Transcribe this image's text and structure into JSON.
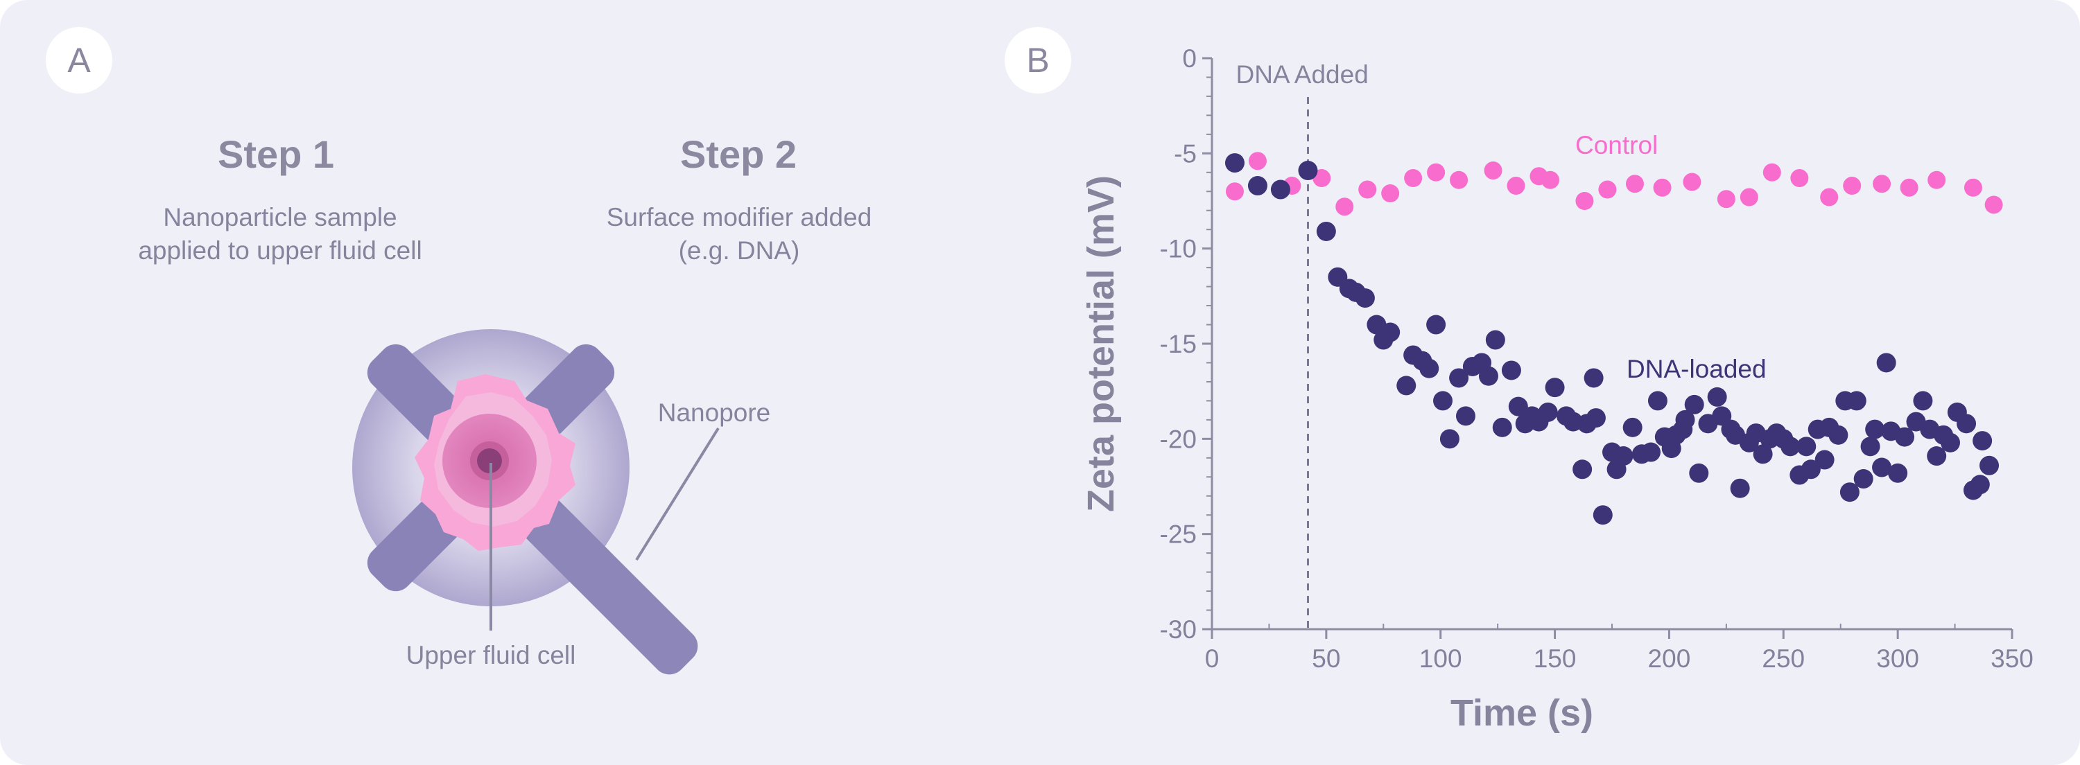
{
  "panel_a": {
    "badge": "A",
    "step1": {
      "title": "Step 1",
      "line1": "Nanoparticle sample",
      "line2": "applied to upper fluid cell"
    },
    "step2": {
      "title": "Step 2",
      "line1": "Surface modifier added",
      "line2": "(e.g. DNA)"
    },
    "labels": {
      "nanopore": "Nanopore",
      "upper_fluid_cell": "Upper fluid cell"
    }
  },
  "panel_b": {
    "badge": "B"
  },
  "colors": {
    "background": "#eff0f7",
    "card": "#ffffff",
    "text": "#83809b",
    "axis": "#8e8ba3",
    "dna_loaded": "#3d3478",
    "control": "#f76ccd",
    "x_bars": "#8d86b8",
    "pink_dark": "#eb7ab8",
    "pink_light": "#f8a7d6"
  },
  "chart_data": {
    "type": "scatter",
    "xlabel": "Time (s)",
    "ylabel": "Zeta potential (mV)",
    "xlim": [
      0,
      350
    ],
    "ylim": [
      -30,
      0
    ],
    "x_ticks": [
      "0",
      "50",
      "100",
      "150",
      "200",
      "250",
      "300",
      "350"
    ],
    "y_ticks": [
      "0",
      "-5",
      "-10",
      "-15",
      "-20",
      "-25",
      "-30"
    ],
    "grid": false,
    "annotations": [
      {
        "text": "DNA Added",
        "x": 42,
        "type": "vertical-dashed-line"
      }
    ],
    "series": [
      {
        "name": "Control",
        "points": [
          [
            10,
            -7.0
          ],
          [
            20,
            -5.4
          ],
          [
            35,
            -6.7
          ],
          [
            48,
            -6.3
          ],
          [
            58,
            -7.8
          ],
          [
            68,
            -6.9
          ],
          [
            78,
            -7.1
          ],
          [
            88,
            -6.3
          ],
          [
            98,
            -6.0
          ],
          [
            108,
            -6.4
          ],
          [
            123,
            -5.9
          ],
          [
            133,
            -6.7
          ],
          [
            143,
            -6.2
          ],
          [
            148,
            -6.4
          ],
          [
            163,
            -7.5
          ],
          [
            173,
            -6.9
          ],
          [
            185,
            -6.6
          ],
          [
            197,
            -6.8
          ],
          [
            210,
            -6.5
          ],
          [
            225,
            -7.4
          ],
          [
            235,
            -7.3
          ],
          [
            245,
            -6.0
          ],
          [
            257,
            -6.3
          ],
          [
            270,
            -7.3
          ],
          [
            280,
            -6.7
          ],
          [
            293,
            -6.6
          ],
          [
            305,
            -6.8
          ],
          [
            317,
            -6.4
          ],
          [
            333,
            -6.8
          ],
          [
            342,
            -7.7
          ]
        ]
      },
      {
        "name": "DNA-loaded",
        "points": [
          [
            10,
            -5.5
          ],
          [
            20,
            -6.7
          ],
          [
            30,
            -6.9
          ],
          [
            42,
            -5.9
          ],
          [
            50,
            -9.1
          ],
          [
            55,
            -11.5
          ],
          [
            60,
            -12.1
          ],
          [
            63,
            -12.3
          ],
          [
            67,
            -12.6
          ],
          [
            72,
            -14.0
          ],
          [
            75,
            -14.8
          ],
          [
            78,
            -14.4
          ],
          [
            85,
            -17.2
          ],
          [
            88,
            -15.6
          ],
          [
            92,
            -15.9
          ],
          [
            95,
            -16.3
          ],
          [
            98,
            -14.0
          ],
          [
            101,
            -18.0
          ],
          [
            104,
            -20.0
          ],
          [
            108,
            -16.8
          ],
          [
            111,
            -18.8
          ],
          [
            114,
            -16.2
          ],
          [
            118,
            -16.0
          ],
          [
            121,
            -16.7
          ],
          [
            124,
            -14.8
          ],
          [
            127,
            -19.4
          ],
          [
            131,
            -16.4
          ],
          [
            134,
            -18.3
          ],
          [
            137,
            -19.2
          ],
          [
            140,
            -18.8
          ],
          [
            143,
            -19.1
          ],
          [
            147,
            -18.6
          ],
          [
            150,
            -17.3
          ],
          [
            155,
            -18.8
          ],
          [
            158,
            -19.1
          ],
          [
            162,
            -21.6
          ],
          [
            164,
            -19.2
          ],
          [
            167,
            -16.8
          ],
          [
            168,
            -18.9
          ],
          [
            171,
            -24.0
          ],
          [
            175,
            -20.7
          ],
          [
            177,
            -21.6
          ],
          [
            180,
            -20.9
          ],
          [
            184,
            -19.4
          ],
          [
            188,
            -20.8
          ],
          [
            192,
            -20.7
          ],
          [
            195,
            -18.0
          ],
          [
            198,
            -19.9
          ],
          [
            201,
            -20.5
          ],
          [
            203,
            -19.8
          ],
          [
            206,
            -19.5
          ],
          [
            207,
            -19.0
          ],
          [
            211,
            -18.2
          ],
          [
            213,
            -21.8
          ],
          [
            217,
            -19.2
          ],
          [
            221,
            -17.8
          ],
          [
            223,
            -18.8
          ],
          [
            227,
            -19.5
          ],
          [
            229,
            -19.8
          ],
          [
            231,
            -22.6
          ],
          [
            235,
            -20.2
          ],
          [
            238,
            -19.7
          ],
          [
            241,
            -20.8
          ],
          [
            244,
            -20.0
          ],
          [
            247,
            -19.7
          ],
          [
            250,
            -20.0
          ],
          [
            253,
            -20.4
          ],
          [
            257,
            -21.9
          ],
          [
            260,
            -20.4
          ],
          [
            262,
            -21.6
          ],
          [
            265,
            -19.5
          ],
          [
            268,
            -21.1
          ],
          [
            270,
            -19.4
          ],
          [
            274,
            -19.8
          ],
          [
            277,
            -18.0
          ],
          [
            279,
            -22.8
          ],
          [
            282,
            -18.0
          ],
          [
            285,
            -22.1
          ],
          [
            288,
            -20.4
          ],
          [
            290,
            -19.5
          ],
          [
            293,
            -21.5
          ],
          [
            295,
            -16.0
          ],
          [
            297,
            -19.6
          ],
          [
            300,
            -21.8
          ],
          [
            303,
            -19.9
          ],
          [
            308,
            -19.1
          ],
          [
            311,
            -18.0
          ],
          [
            314,
            -19.5
          ],
          [
            317,
            -20.9
          ],
          [
            320,
            -19.8
          ],
          [
            323,
            -20.2
          ],
          [
            326,
            -18.6
          ],
          [
            330,
            -19.2
          ],
          [
            333,
            -22.7
          ],
          [
            336,
            -22.4
          ],
          [
            337,
            -20.1
          ],
          [
            340,
            -21.4
          ]
        ]
      }
    ]
  }
}
